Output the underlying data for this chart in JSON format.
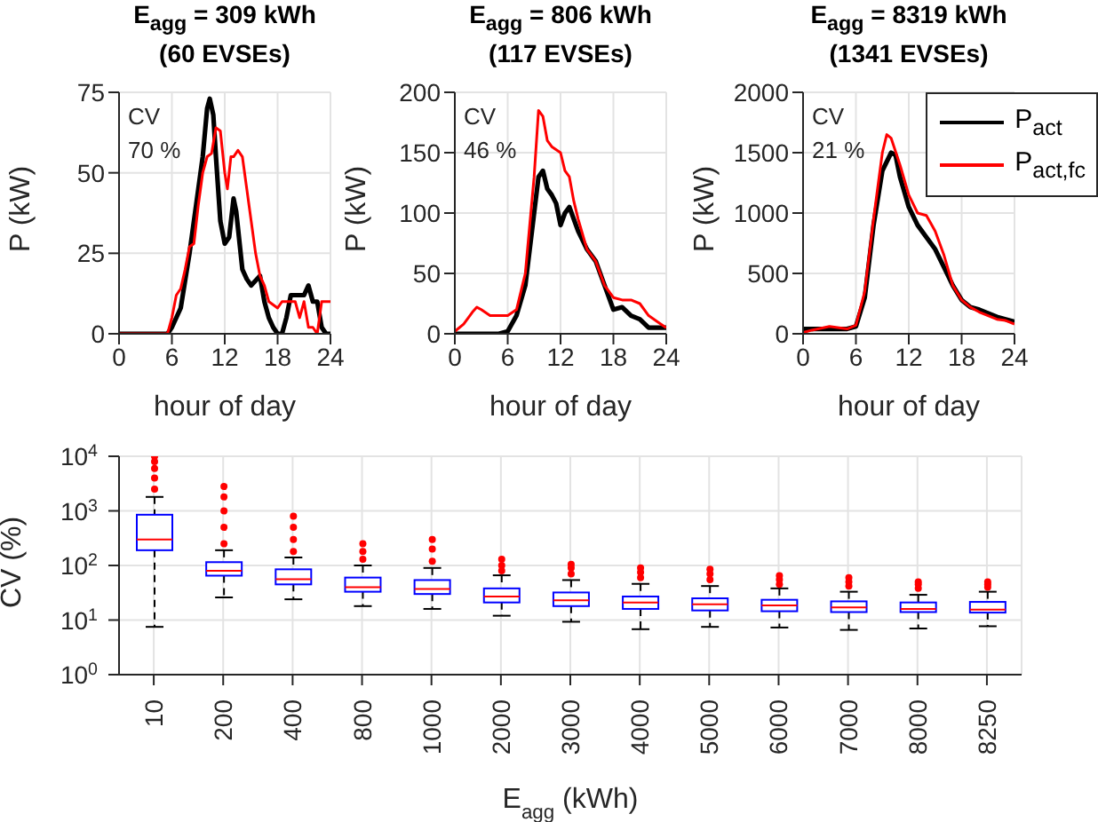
{
  "chart_data": [
    {
      "type": "line",
      "title": "E$_{agg}$ = 309 kWh",
      "subtitle": "(60 EVSEs)",
      "xlabel": "hour of day",
      "ylabel": "P (kW)",
      "annotations": [
        "CV",
        "70 %"
      ],
      "xlim": [
        0,
        24
      ],
      "xticks": [
        0,
        6,
        12,
        18,
        24
      ],
      "ylim": [
        0,
        75
      ],
      "yticks": [
        0,
        25,
        50,
        75
      ],
      "grid": true,
      "series": [
        {
          "color": "#000000",
          "x": [
            0,
            5.5,
            6,
            7,
            8,
            9,
            9.5,
            10,
            10.3,
            10.7,
            11,
            11.5,
            12,
            12.5,
            13,
            13.3,
            14,
            14.5,
            15,
            16,
            16.5,
            17,
            17.5,
            18,
            18.5,
            19,
            19.5,
            21,
            21.5,
            22,
            22.5,
            23,
            23.5,
            24
          ],
          "values": [
            0,
            0,
            2,
            8,
            25,
            45,
            55,
            70,
            73,
            68,
            55,
            35,
            28,
            30,
            42,
            38,
            20,
            17,
            15,
            18,
            10,
            5,
            2,
            0,
            0,
            5,
            12,
            12,
            15,
            10,
            10,
            2,
            0,
            0
          ]
        },
        {
          "color": "#ff0000",
          "x": [
            0,
            5.5,
            6,
            6.5,
            7,
            7.5,
            8,
            8.5,
            9,
            9.5,
            10,
            10.5,
            11,
            11.5,
            12,
            12.3,
            12.7,
            13,
            13.5,
            14,
            15,
            15.5,
            16,
            16.5,
            17,
            18,
            18.5,
            20,
            20.5,
            21,
            21.5,
            22,
            22.5,
            23,
            24
          ],
          "values": [
            0,
            0,
            5,
            12,
            14,
            20,
            27,
            28,
            40,
            50,
            55,
            56,
            64,
            63,
            50,
            45,
            55,
            55,
            57,
            55,
            35,
            25,
            18,
            15,
            10,
            8,
            10,
            10,
            5,
            10,
            2,
            2,
            0,
            10,
            10
          ]
        }
      ]
    },
    {
      "type": "line",
      "title": "E$_{agg}$ = 806 kWh",
      "subtitle": "(117 EVSEs)",
      "xlabel": "hour of day",
      "ylabel": "P (kW)",
      "annotations": [
        "CV",
        "46 %"
      ],
      "xlim": [
        0,
        24
      ],
      "xticks": [
        0,
        6,
        12,
        18,
        24
      ],
      "ylim": [
        0,
        200
      ],
      "yticks": [
        0,
        50,
        100,
        150,
        200
      ],
      "grid": true,
      "series": [
        {
          "color": "#000000",
          "x": [
            0,
            5,
            6,
            7,
            8,
            9,
            9.5,
            10,
            10.5,
            11,
            11.5,
            12,
            12.5,
            13,
            14,
            15,
            16,
            17,
            18,
            19,
            20,
            21,
            22,
            24
          ],
          "values": [
            0,
            0,
            2,
            15,
            40,
            100,
            130,
            135,
            120,
            115,
            108,
            90,
            100,
            105,
            85,
            70,
            60,
            40,
            20,
            22,
            15,
            12,
            5,
            5
          ]
        },
        {
          "color": "#ff0000",
          "x": [
            0,
            1,
            2,
            2.5,
            3,
            4,
            5,
            6,
            7,
            8,
            9,
            9.5,
            10,
            10.5,
            11,
            12,
            12.5,
            13,
            13.5,
            14,
            15,
            16,
            17,
            18,
            19,
            20,
            21,
            22,
            23,
            24
          ],
          "values": [
            2,
            8,
            18,
            22,
            20,
            15,
            15,
            15,
            20,
            50,
            130,
            185,
            180,
            160,
            155,
            150,
            135,
            130,
            110,
            95,
            70,
            60,
            40,
            30,
            28,
            28,
            25,
            15,
            10,
            5
          ]
        }
      ]
    },
    {
      "type": "line",
      "title": "E$_{agg}$ = 8319 kWh",
      "subtitle": "(1341 EVSEs)",
      "xlabel": "hour of day",
      "ylabel": "P (kW)",
      "annotations": [
        "CV",
        "21 %"
      ],
      "xlim": [
        0,
        24
      ],
      "xticks": [
        0,
        6,
        12,
        18,
        24
      ],
      "ylim": [
        0,
        2000
      ],
      "yticks": [
        0,
        500,
        1000,
        1500,
        2000
      ],
      "grid": true,
      "legend": "top right",
      "series": [
        {
          "name": "P$_{act}$",
          "color": "#000000",
          "x": [
            0,
            1,
            3,
            5,
            6,
            7,
            8,
            9,
            10,
            10.5,
            11,
            12,
            13,
            14,
            15,
            16,
            17,
            18,
            19,
            20,
            21,
            22,
            23,
            24
          ],
          "values": [
            40,
            40,
            40,
            40,
            60,
            300,
            900,
            1350,
            1500,
            1480,
            1300,
            1050,
            900,
            800,
            700,
            550,
            400,
            280,
            220,
            200,
            170,
            140,
            120,
            100
          ]
        },
        {
          "name": "P$_{act,fc}$",
          "color": "#ff0000",
          "x": [
            0,
            1,
            3,
            5,
            6,
            7,
            8,
            9,
            9.5,
            10,
            11,
            12,
            13,
            14,
            15,
            16,
            17,
            18,
            19,
            20,
            21,
            22,
            23,
            24
          ],
          "values": [
            10,
            30,
            60,
            40,
            70,
            350,
            950,
            1500,
            1650,
            1620,
            1400,
            1150,
            1000,
            980,
            850,
            650,
            400,
            280,
            220,
            180,
            150,
            120,
            110,
            80
          ]
        }
      ]
    },
    {
      "type": "box",
      "xlabel": "E$_{agg}$ (kWh)",
      "ylabel": "CV (%)",
      "categories": [
        "10",
        "200",
        "400",
        "800",
        "1000",
        "2000",
        "3000",
        "4000",
        "5000",
        "6000",
        "7000",
        "8000",
        "8250"
      ],
      "log": true,
      "ylim": [
        1,
        10000
      ],
      "yticks": [
        {
          "value": 1,
          "label": "10$^{0}$"
        },
        {
          "value": 10,
          "label": "10$^{1}$"
        },
        {
          "value": 100,
          "label": "10$^{2}$"
        },
        {
          "value": 1000,
          "label": "10$^{3}$"
        },
        {
          "value": 10000,
          "label": "10$^{4}$"
        }
      ],
      "grid": true,
      "boxes": [
        {
          "low": 7.5,
          "q1": 190,
          "median": 300,
          "q3": 850,
          "high": 1800,
          "outliers": [
            2500,
            4000,
            6000,
            8000,
            10000
          ]
        },
        {
          "low": 26,
          "q1": 65,
          "median": 80,
          "q3": 115,
          "high": 190,
          "outliers": [
            250,
            500,
            1000,
            1800,
            2800
          ]
        },
        {
          "low": 24,
          "q1": 45,
          "median": 56,
          "q3": 85,
          "high": 140,
          "outliers": [
            180,
            300,
            500,
            800
          ]
        },
        {
          "low": 18,
          "q1": 33,
          "median": 40,
          "q3": 60,
          "high": 100,
          "outliers": [
            130,
            180,
            250
          ]
        },
        {
          "low": 16,
          "q1": 30,
          "median": 37,
          "q3": 54,
          "high": 90,
          "outliers": [
            120,
            200,
            300
          ]
        },
        {
          "low": 12,
          "q1": 21,
          "median": 27,
          "q3": 38,
          "high": 66,
          "outliers": [
            80,
            100,
            130
          ]
        },
        {
          "low": 9.3,
          "q1": 18,
          "median": 23,
          "q3": 32,
          "high": 54,
          "outliers": [
            70,
            90,
            105
          ]
        },
        {
          "low": 6.8,
          "q1": 16,
          "median": 21,
          "q3": 27,
          "high": 46,
          "outliers": [
            60,
            75,
            90
          ]
        },
        {
          "low": 7.5,
          "q1": 15,
          "median": 19.5,
          "q3": 25,
          "high": 42,
          "outliers": [
            55,
            70,
            85
          ]
        },
        {
          "low": 7.3,
          "q1": 14.5,
          "median": 18.5,
          "q3": 23.5,
          "high": 38,
          "outliers": [
            45,
            55,
            65
          ]
        },
        {
          "low": 6.6,
          "q1": 14,
          "median": 17,
          "q3": 22,
          "high": 33,
          "outliers": [
            42,
            50,
            60
          ]
        },
        {
          "low": 7,
          "q1": 14,
          "median": 16,
          "q3": 21,
          "high": 29,
          "outliers": [
            38,
            45,
            50
          ]
        },
        {
          "low": 7.7,
          "q1": 13.7,
          "median": 15.5,
          "q3": 21.5,
          "high": 33,
          "outliers": [
            40,
            45,
            50
          ]
        }
      ]
    }
  ]
}
